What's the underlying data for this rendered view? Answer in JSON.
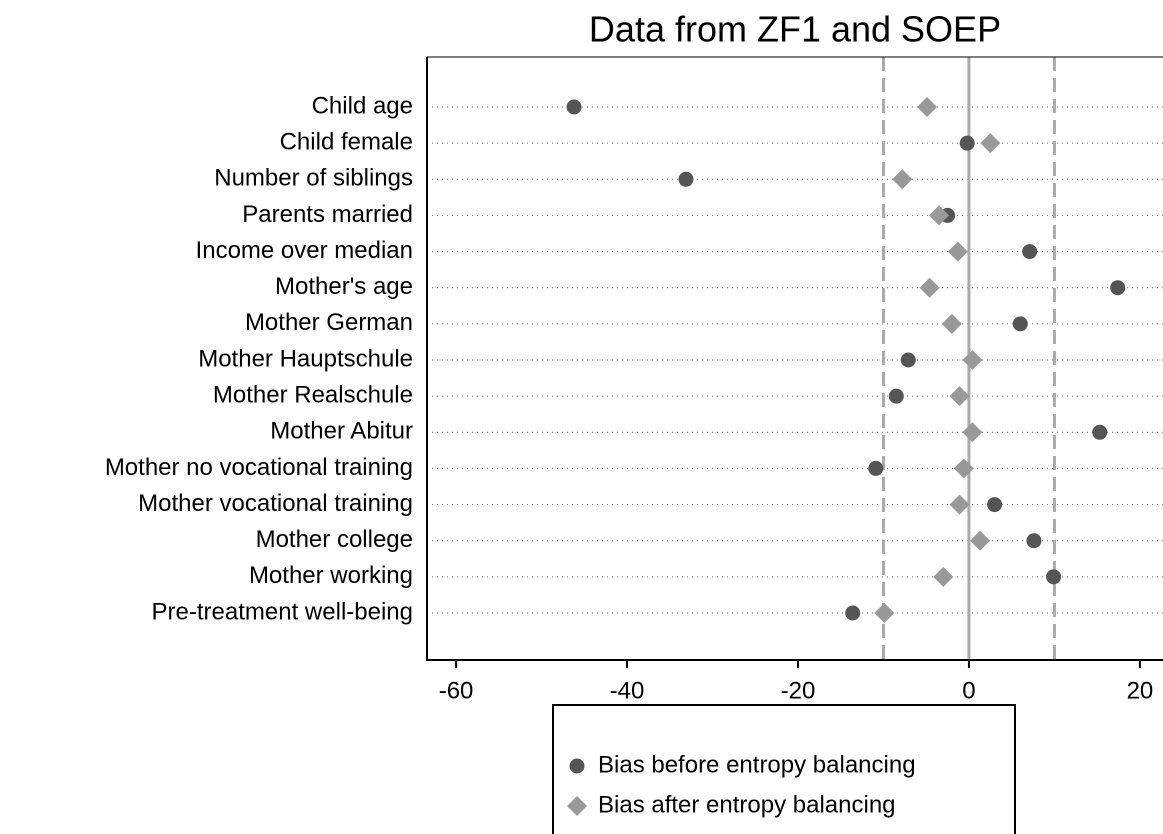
{
  "chart_data": {
    "type": "dot",
    "title": "Data from ZF1 and SOEP",
    "categories": [
      "Child age",
      "Child female",
      "Number of siblings",
      "Parents married",
      "Income over median",
      "Mother's age",
      "Mother German",
      "Mother Hauptschule",
      "Mother Realschule",
      "Mother Abitur",
      "Mother no vocational training",
      "Mother vocational training",
      "Mother college",
      "Mother working",
      "Pre-treatment well-being"
    ],
    "series": [
      {
        "name": "Bias before entropy balancing",
        "color": "#555555",
        "marker": "circle",
        "values": [
          -46.2,
          -0.2,
          -33.1,
          -2.5,
          7.1,
          17.4,
          6.0,
          -7.1,
          -8.5,
          15.3,
          -10.9,
          3.0,
          7.6,
          9.9,
          -13.6
        ]
      },
      {
        "name": "Bias after entropy balancing",
        "color": "#999999",
        "marker": "diamond",
        "values": [
          -4.9,
          2.5,
          -7.8,
          -3.5,
          -1.3,
          -4.6,
          -2.0,
          0.4,
          -1.1,
          0.4,
          -0.6,
          -1.1,
          1.3,
          -3.0,
          -9.9
        ]
      }
    ],
    "xlim": [
      -63.4,
      22.7
    ],
    "xticks": [
      -60,
      -40,
      -20,
      0,
      20
    ],
    "reference_lines": [
      {
        "value": -10,
        "style": "dashed"
      },
      {
        "value": 0,
        "style": "solid"
      },
      {
        "value": 10,
        "style": "dashed"
      }
    ],
    "grid": true,
    "legend_position": "bottom"
  }
}
